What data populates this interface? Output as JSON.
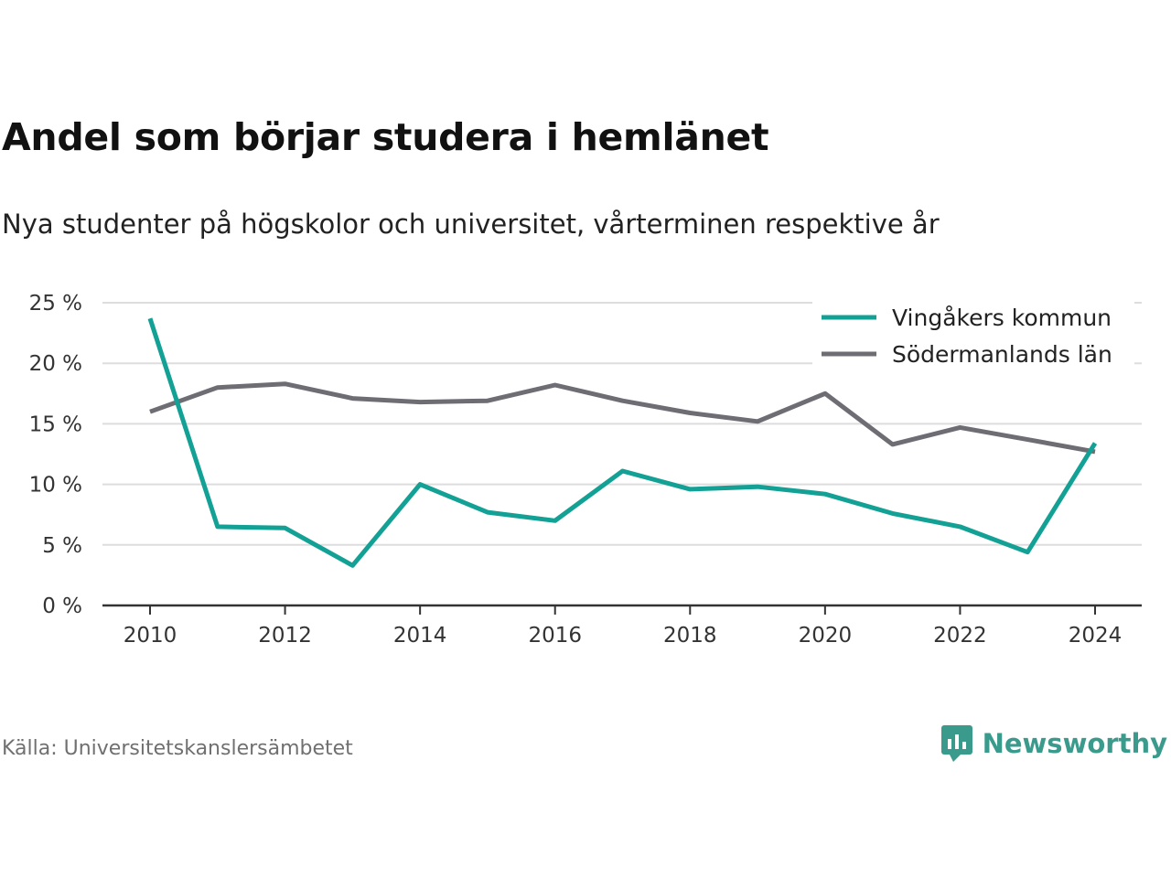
{
  "title": "Andel som börjar studera i hemlänet",
  "subtitle": "Nya studenter på högskolor och universitet, vårterminen respektive år",
  "source": "Källa: Universitetskanslersämbetet",
  "brand": {
    "name": "Newsworthy",
    "icon": "newsworthy-logo-icon",
    "color": "#3a9a8c"
  },
  "chart_data": {
    "type": "line",
    "x": [
      2010,
      2011,
      2012,
      2013,
      2014,
      2015,
      2016,
      2017,
      2018,
      2019,
      2020,
      2021,
      2022,
      2023,
      2024
    ],
    "x_ticks": [
      "2010",
      "2012",
      "2014",
      "2016",
      "2018",
      "2020",
      "2022",
      "2024"
    ],
    "y_ticks": [
      "0 %",
      "5 %",
      "10 %",
      "15 %",
      "20 %",
      "25 %"
    ],
    "ylim": [
      0,
      25
    ],
    "grid": true,
    "legend_position": "top-right",
    "series": [
      {
        "name": "Vingåkers kommun",
        "color": "#13a196",
        "values": [
          23.7,
          6.5,
          6.4,
          3.3,
          10.0,
          7.7,
          7.0,
          11.1,
          9.6,
          9.8,
          9.2,
          7.6,
          6.5,
          4.4,
          13.4
        ]
      },
      {
        "name": "Södermanlands län",
        "color": "#6e6d73",
        "values": [
          16.0,
          18.0,
          18.3,
          17.1,
          16.8,
          16.9,
          18.2,
          16.9,
          15.9,
          15.2,
          17.5,
          13.3,
          14.7,
          13.7,
          12.7
        ]
      }
    ]
  }
}
